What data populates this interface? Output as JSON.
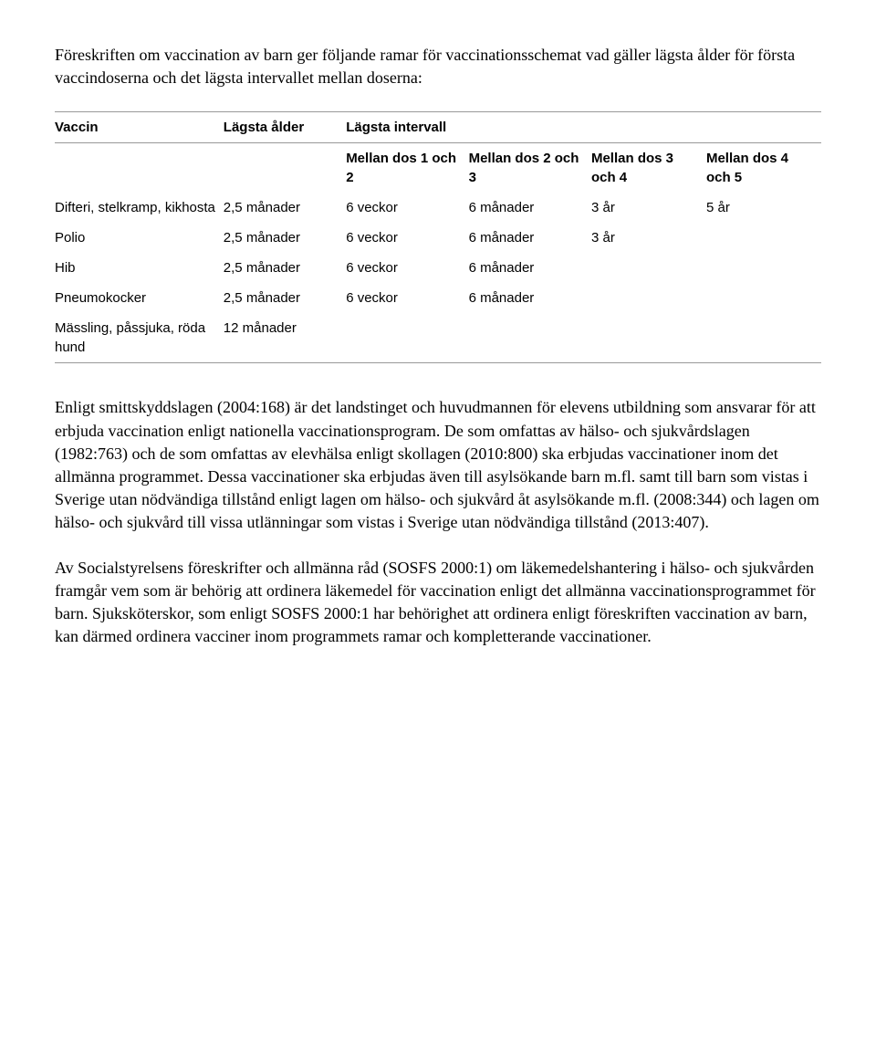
{
  "intro": "Föreskriften om vaccination av barn ger följande ramar för vaccinationsschemat vad gäller lägsta ålder för första vaccindoserna och det lägsta intervallet mellan doserna:",
  "table": {
    "header": {
      "vaccin": "Vaccin",
      "age": "Lägsta ålder",
      "intervall": "Lägsta intervall",
      "i1": "Mellan dos 1 och 2",
      "i2": "Mellan dos 2 och 3",
      "i3": "Mellan dos 3 och 4",
      "i4": "Mellan dos 4 och 5"
    },
    "rows": [
      {
        "vaccin": "Difteri, stelkramp, kikhosta",
        "age": "2,5 månader",
        "i1": "6 veckor",
        "i2": "6 månader",
        "i3": "3 år",
        "i4": "5 år"
      },
      {
        "vaccin": "Polio",
        "age": "2,5 månader",
        "i1": "6 veckor",
        "i2": "6 månader",
        "i3": "3 år",
        "i4": ""
      },
      {
        "vaccin": "Hib",
        "age": "2,5 månader",
        "i1": "6 veckor",
        "i2": "6 månader",
        "i3": "",
        "i4": ""
      },
      {
        "vaccin": "Pneumokocker",
        "age": "2,5 månader",
        "i1": "6 veckor",
        "i2": "6 månader",
        "i3": "",
        "i4": ""
      },
      {
        "vaccin": "Mässling, påssjuka, röda hund",
        "age": "12 månader",
        "i1": "",
        "i2": "",
        "i3": "",
        "i4": ""
      }
    ]
  },
  "para1": "Enligt smittskyddslagen (2004:168) är det landstinget och huvudmannen för elevens utbildning som ansvarar för att erbjuda vaccination enligt nationella vaccinationsprogram. De som omfattas av hälso- och sjukvårdslagen (1982:763) och de som omfattas av elevhälsa enligt skollagen (2010:800) ska erbjudas vaccinationer inom det allmänna programmet. Dessa vaccinationer ska erbjudas även till asylsökande barn m.fl. samt till barn som vistas i Sverige utan nödvändiga tillstånd enligt lagen om hälso- och sjukvård åt asylsökande m.fl. (2008:344) och lagen om hälso- och sjukvård till vissa utlänningar som vistas i Sverige utan nödvändiga tillstånd (2013:407).",
  "para2": "Av Socialstyrelsens föreskrifter och allmänna råd (SOSFS 2000:1) om läkemedelshantering i hälso- och sjukvården framgår vem som är behörig att ordinera läkemedel för vaccination enligt det allmänna vaccinationsprogrammet för barn. Sjuksköterskor, som enligt SOSFS 2000:1 har behörighet att ordinera enligt föreskriften vaccination av barn, kan därmed ordinera vacciner inom programmets ramar och kompletterande vaccinationer."
}
